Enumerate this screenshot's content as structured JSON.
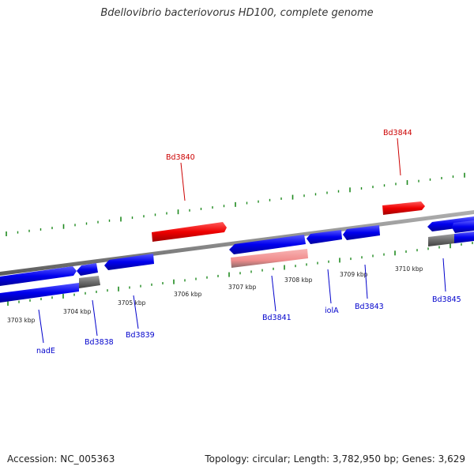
{
  "title": "Bdellovibrio bacteriovorus HD100, complete genome",
  "accession_text": "Accession: NC_005363",
  "summary_text": "Topology: circular; Length: 3,782,950 bp; Genes: 3,629",
  "colors": {
    "backbone": "#8c8c8c",
    "tick_dash": "#1f8a1f",
    "forward_cds": "#0000ee",
    "highlight_cds": "#ee0000",
    "highlight_cds_pale": "#f08c8c",
    "pseudo_segment": "#6e6e6e",
    "label_blue": "#0000cc",
    "label_red": "#cc0000"
  },
  "scale_ticks": [
    {
      "label": "3703 kbp"
    },
    {
      "label": "3704 kbp"
    },
    {
      "label": "3705 kbp"
    },
    {
      "label": "3706 kbp"
    },
    {
      "label": "3707 kbp"
    },
    {
      "label": "3708 kbp"
    },
    {
      "label": "3709 kbp"
    },
    {
      "label": "3710 kbp"
    }
  ],
  "gene_labels": [
    {
      "name": "nadE",
      "color_key": "label_blue"
    },
    {
      "name": "Bd3838",
      "color_key": "label_blue"
    },
    {
      "name": "Bd3839",
      "color_key": "label_blue"
    },
    {
      "name": "Bd3840",
      "color_key": "label_red"
    },
    {
      "name": "Bd3841",
      "color_key": "label_blue"
    },
    {
      "name": "iolA",
      "color_key": "label_blue"
    },
    {
      "name": "Bd3843",
      "color_key": "label_blue"
    },
    {
      "name": "Bd3844",
      "color_key": "label_red"
    },
    {
      "name": "Bd3845",
      "color_key": "label_blue"
    }
  ]
}
